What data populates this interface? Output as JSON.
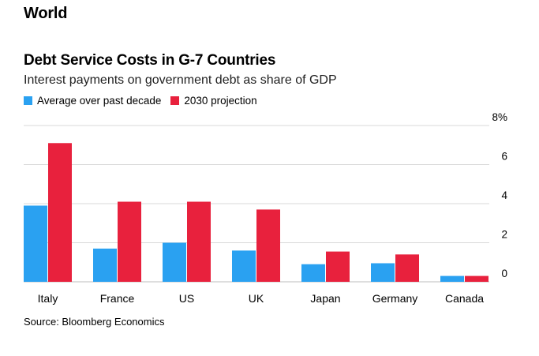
{
  "header": {
    "section": "World"
  },
  "chart_data": {
    "type": "bar",
    "title": "Debt Service Costs in G-7 Countries",
    "subtitle": "Interest payments on government debt as share of GDP",
    "categories": [
      "Italy",
      "France",
      "US",
      "UK",
      "Japan",
      "Germany",
      "Canada"
    ],
    "series": [
      {
        "name": "Average over past decade",
        "color": "#2aa1f1",
        "values": [
          3.9,
          1.7,
          2.0,
          1.6,
          0.9,
          0.95,
          0.3
        ]
      },
      {
        "name": "2030 projection",
        "color": "#e8213d",
        "values": [
          7.1,
          4.1,
          4.1,
          3.7,
          1.55,
          1.4,
          0.3
        ]
      }
    ],
    "ylim": [
      0,
      8
    ],
    "yticks": [
      {
        "value": 0,
        "label": "0"
      },
      {
        "value": 2,
        "label": "2"
      },
      {
        "value": 4,
        "label": "4"
      },
      {
        "value": 6,
        "label": "6"
      },
      {
        "value": 8,
        "label": "8%"
      }
    ],
    "xlabel": "",
    "ylabel": "",
    "legend": "top-left",
    "grid": true
  },
  "footer": {
    "source": "Source: Bloomberg Economics"
  }
}
